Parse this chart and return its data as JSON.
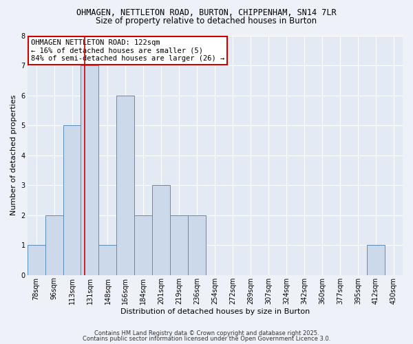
{
  "title1": "OHMAGEN, NETTLETON ROAD, BURTON, CHIPPENHAM, SN14 7LR",
  "title2": "Size of property relative to detached houses in Burton",
  "xlabel": "Distribution of detached houses by size in Burton",
  "ylabel": "Number of detached properties",
  "categories": [
    "78sqm",
    "96sqm",
    "113sqm",
    "131sqm",
    "148sqm",
    "166sqm",
    "184sqm",
    "201sqm",
    "219sqm",
    "236sqm",
    "254sqm",
    "272sqm",
    "289sqm",
    "307sqm",
    "324sqm",
    "342sqm",
    "360sqm",
    "377sqm",
    "395sqm",
    "412sqm",
    "430sqm"
  ],
  "bar_heights": [
    1,
    2,
    5,
    7,
    1,
    6,
    2,
    3,
    2,
    2,
    0,
    0,
    0,
    0,
    0,
    0,
    0,
    0,
    0,
    1,
    0
  ],
  "bar_color": "#ccd9ea",
  "bar_edge_color": "#5b8db8",
  "red_line_x": 2.72,
  "annotation_text": "OHMAGEN NETTLETON ROAD: 122sqm\n← 16% of detached houses are smaller (5)\n84% of semi-detached houses are larger (26) →",
  "annotation_box_color": "#ffffff",
  "annotation_box_edge": "#cc0000",
  "ylim": [
    0,
    8
  ],
  "yticks": [
    0,
    1,
    2,
    3,
    4,
    5,
    6,
    7,
    8
  ],
  "footer1": "Contains HM Land Registry data © Crown copyright and database right 2025.",
  "footer2": "Contains public sector information licensed under the Open Government Licence 3.0.",
  "fig_facecolor": "#eef2f8",
  "plot_facecolor": "#e4eaf4",
  "grid_color": "#ffffff",
  "title1_fontsize": 8.5,
  "title2_fontsize": 8.5,
  "xlabel_fontsize": 8.0,
  "ylabel_fontsize": 8.0,
  "tick_fontsize": 7.0,
  "annot_fontsize": 7.5,
  "footer_fontsize": 6.0
}
